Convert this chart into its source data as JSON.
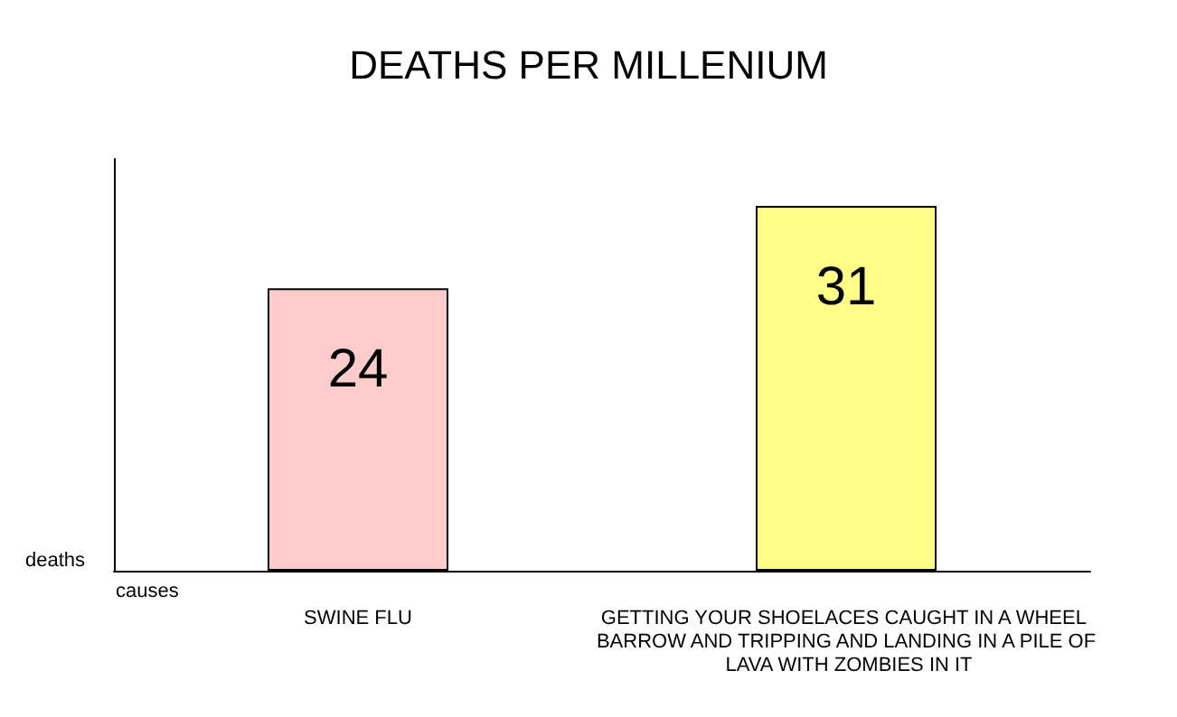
{
  "chart_data": {
    "type": "bar",
    "title": "DEATHS PER MILLENIUM",
    "xlabel": "causes",
    "ylabel": "deaths",
    "categories": [
      "SWINE FLU",
      "GETTING YOUR SHOELACES CAUGHT IN A WHEEL BARROW AND TRIPPING AND LANDING IN A PILE OF LAVA WITH ZOMBIES IN IT"
    ],
    "values": [
      24,
      31
    ],
    "colors": [
      "#ffcccc",
      "#ffff88"
    ],
    "data_labels": true,
    "tick_labels": "x"
  }
}
